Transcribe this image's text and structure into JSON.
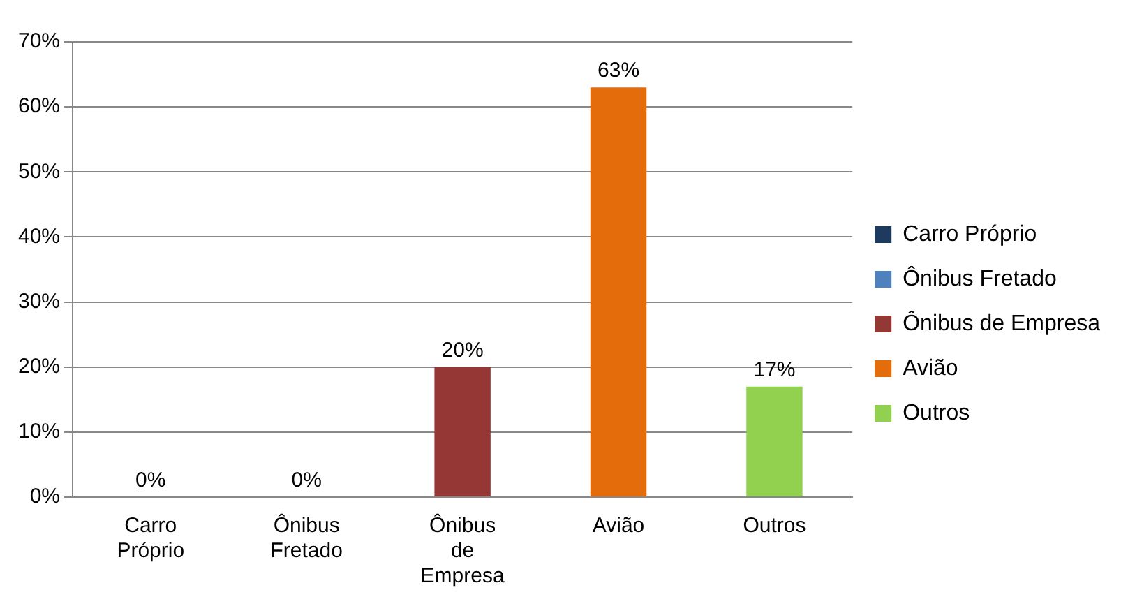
{
  "chart_data": {
    "type": "bar",
    "categories": [
      "Carro Próprio",
      "Ônibus Fretado",
      "Ônibus de Empresa",
      "Avião",
      "Outros"
    ],
    "series": [
      {
        "name": "Carro Próprio",
        "color": "#1f3a5f",
        "values": [
          0,
          null,
          null,
          null,
          null
        ],
        "value_labels": [
          "0%",
          null,
          null,
          null,
          null
        ]
      },
      {
        "name": "Ônibus Fretado",
        "color": "#4f81bd",
        "values": [
          null,
          0,
          null,
          null,
          null
        ],
        "value_labels": [
          null,
          "0%",
          null,
          null,
          null
        ]
      },
      {
        "name": "Ônibus de Empresa",
        "color": "#953735",
        "values": [
          null,
          null,
          20,
          null,
          null
        ],
        "value_labels": [
          null,
          null,
          "20%",
          null,
          null
        ]
      },
      {
        "name": "Avião",
        "color": "#e46c0a",
        "values": [
          null,
          null,
          null,
          63,
          null
        ],
        "value_labels": [
          null,
          null,
          null,
          "63%",
          null
        ]
      },
      {
        "name": "Outros",
        "color": "#92d050",
        "values": [
          null,
          null,
          null,
          null,
          17
        ],
        "value_labels": [
          null,
          null,
          null,
          null,
          "17%"
        ]
      }
    ],
    "ylim": [
      0,
      70
    ],
    "yticks": [
      {
        "value": 0,
        "label": "0%"
      },
      {
        "value": 10,
        "label": "10%"
      },
      {
        "value": 20,
        "label": "20%"
      },
      {
        "value": 30,
        "label": "30%"
      },
      {
        "value": 40,
        "label": "40%"
      },
      {
        "value": 50,
        "label": "50%"
      },
      {
        "value": 60,
        "label": "60%"
      },
      {
        "value": 70,
        "label": "70%"
      }
    ],
    "grid": "y",
    "legend": "right"
  }
}
